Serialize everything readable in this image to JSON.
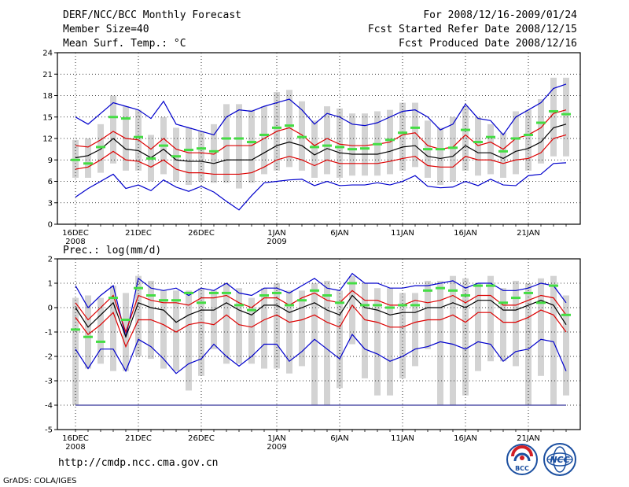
{
  "header": {
    "title": "DERF/NCC/BCC Monthly Forecast",
    "member_size": "Member Size=40",
    "variable": "Mean Surf. Temp.: °C",
    "period": "For 2008/12/16-2009/01/24",
    "fcst_started": "Fcst Started Refer Date 2008/12/15",
    "fcst_produced": "Fcst Produced Date 2008/12/16"
  },
  "panel2_label": "Prec.: log(mm/d)",
  "footer": {
    "url": "http://cmdp.ncc.cma.gov.cn",
    "credit": "GrADS: COLA/IGES"
  },
  "logos": {
    "bcc": "BCC",
    "ncc": "NCC"
  },
  "colors": {
    "max_min": "#0000cc",
    "mean": "#000000",
    "spread": "#dd0000",
    "box": "#d3d3d3",
    "obs": "#44dd44",
    "axis": "#000000"
  },
  "x_tick_labels": [
    {
      "label": "16DEC",
      "sub": "2008",
      "day": 0
    },
    {
      "label": "21DEC",
      "sub": "",
      "day": 5
    },
    {
      "label": "26DEC",
      "sub": "",
      "day": 10
    },
    {
      "label": "1JAN",
      "sub": "2009",
      "day": 16
    },
    {
      "label": "6JAN",
      "sub": "",
      "day": 21
    },
    {
      "label": "11JAN",
      "sub": "",
      "day": 26
    },
    {
      "label": "16JAN",
      "sub": "",
      "day": 31
    },
    {
      "label": "21JAN",
      "sub": "",
      "day": 36
    }
  ],
  "chart_data": [
    {
      "type": "line",
      "title": "Mean Surf. Temp.: °C",
      "ylim": [
        0,
        24
      ],
      "yticks": [
        "0",
        "3",
        "6",
        "9",
        "12",
        "15",
        "18",
        "21",
        "24"
      ],
      "x_days": [
        0,
        1,
        2,
        3,
        4,
        5,
        6,
        7,
        8,
        9,
        10,
        11,
        12,
        13,
        14,
        15,
        16,
        17,
        18,
        19,
        20,
        21,
        22,
        23,
        24,
        25,
        26,
        27,
        28,
        29,
        30,
        31,
        32,
        33,
        34,
        35,
        36,
        37,
        38,
        39
      ],
      "series": [
        {
          "name": "max",
          "values": [
            15,
            14,
            15.5,
            17,
            16.5,
            16,
            14.8,
            17.2,
            14,
            13.5,
            13,
            12.5,
            15,
            16,
            15.8,
            16.5,
            17,
            17.5,
            16,
            14,
            15.5,
            15,
            14,
            13.8,
            14.2,
            15,
            15.8,
            16,
            15,
            13.2,
            14,
            16.8,
            14.8,
            14.5,
            12.5,
            15,
            16,
            17,
            19,
            19.6
          ]
        },
        {
          "name": "p75",
          "values": [
            11,
            10.8,
            11.8,
            13,
            12,
            11.8,
            10.5,
            12,
            10.5,
            10,
            10,
            9.8,
            11,
            11,
            11,
            12,
            13,
            13.5,
            12.5,
            11,
            12,
            11.2,
            11,
            11,
            11.2,
            11.5,
            12.5,
            12.8,
            11,
            10.5,
            10.8,
            12.5,
            11,
            11.5,
            10.5,
            12,
            12.5,
            13.5,
            15.5,
            16
          ]
        },
        {
          "name": "mean",
          "values": [
            9.3,
            9.6,
            10.5,
            12,
            10.5,
            10.3,
            9.3,
            10.5,
            9,
            8.8,
            8.8,
            8.5,
            9,
            9,
            9,
            10,
            11,
            11.5,
            11,
            9.7,
            10.6,
            10,
            9.8,
            9.8,
            9.8,
            10.2,
            10.8,
            11,
            9.5,
            9.2,
            9.5,
            11,
            10,
            10,
            9.2,
            10.2,
            10.6,
            11.5,
            13.5,
            14
          ]
        },
        {
          "name": "p25",
          "values": [
            7.7,
            8,
            9,
            10.2,
            9,
            8.8,
            8,
            9,
            7.7,
            7.2,
            7.2,
            7,
            7,
            7,
            7.2,
            8,
            9,
            9.5,
            9,
            8.2,
            9,
            8.5,
            8.5,
            8.5,
            8.5,
            8.8,
            9.2,
            9.5,
            8.2,
            8,
            8,
            9.5,
            9,
            9,
            8.5,
            9,
            9.2,
            10,
            12,
            12.5
          ]
        },
        {
          "name": "min",
          "values": [
            3.8,
            5,
            6,
            7,
            5,
            5.5,
            4.7,
            6.2,
            5.2,
            4.6,
            5.3,
            4.5,
            3.2,
            2,
            4,
            5.8,
            6,
            6.2,
            6.3,
            5.4,
            6,
            5.4,
            5.5,
            5.5,
            5.8,
            5.5,
            6,
            6.8,
            5.3,
            5.1,
            5.2,
            6,
            5.4,
            6.3,
            5.5,
            5.4,
            6.8,
            7,
            8.5,
            8.6
          ]
        },
        {
          "name": "observed",
          "values": [
            9,
            8.5,
            10.8,
            15,
            14.8,
            12.2,
            9.2,
            11,
            9.5,
            10.4,
            10.6,
            10.2,
            12,
            12,
            11.5,
            12.5,
            13.5,
            13.8,
            12.2,
            10.8,
            11,
            10.8,
            10.5,
            10.6,
            11.2,
            11.8,
            12.8,
            13.5,
            10.5,
            10.5,
            10.7,
            13.2,
            11.5,
            12.2,
            10.2,
            12,
            12.5,
            14.2,
            15.8,
            15.4
          ]
        },
        {
          "name": "box_high",
          "values": [
            11.8,
            12,
            14,
            18,
            16.5,
            16,
            12.5,
            15,
            13.5,
            13.5,
            13,
            14,
            16.8,
            16.8,
            16,
            16.5,
            18.5,
            18.8,
            17.2,
            14.5,
            16.5,
            16.2,
            15.5,
            15.5,
            15.8,
            16,
            17,
            17,
            14.5,
            13.5,
            15,
            16.5,
            15,
            14,
            12.8,
            15.8,
            16,
            17.5,
            20.5,
            20.5
          ]
        },
        {
          "name": "box_low",
          "values": [
            6.5,
            6.5,
            7.2,
            8.5,
            7.5,
            7.5,
            6,
            7,
            6,
            5.5,
            6,
            5.8,
            5.8,
            5,
            5.8,
            7,
            7.5,
            8,
            7.5,
            6.5,
            7,
            6.5,
            6.8,
            6.8,
            6.8,
            7,
            7.5,
            8,
            6.5,
            5.5,
            6,
            7.5,
            6.8,
            7,
            6.5,
            7,
            7.5,
            8.5,
            9.5,
            9.5
          ]
        }
      ]
    },
    {
      "type": "line",
      "title": "Prec.: log(mm/d)",
      "ylim": [
        -5,
        2
      ],
      "yticks": [
        "-5",
        "-4",
        "-3",
        "-2",
        "-1",
        "0",
        "1",
        "2"
      ],
      "x_days": [
        0,
        1,
        2,
        3,
        4,
        5,
        6,
        7,
        8,
        9,
        10,
        11,
        12,
        13,
        14,
        15,
        16,
        17,
        18,
        19,
        20,
        21,
        22,
        23,
        24,
        25,
        26,
        27,
        28,
        29,
        30,
        31,
        32,
        33,
        34,
        35,
        36,
        37,
        38,
        39
      ],
      "series": [
        {
          "name": "max",
          "values": [
            0.9,
            0,
            0.5,
            0.9,
            -1.2,
            1.2,
            0.8,
            0.7,
            0.8,
            0.5,
            0.8,
            0.7,
            1,
            0.6,
            0.5,
            0.8,
            0.8,
            0.6,
            0.9,
            1.2,
            0.8,
            0.7,
            1.4,
            1,
            1,
            0.8,
            0.8,
            0.9,
            0.9,
            1,
            1.1,
            0.8,
            1,
            1,
            0.7,
            0.7,
            0.8,
            1,
            0.9,
            0.2
          ]
        },
        {
          "name": "p75",
          "values": [
            0.2,
            -0.5,
            0,
            0.5,
            -1,
            0.5,
            0.3,
            0.2,
            0.2,
            0.1,
            0.4,
            0.4,
            0.5,
            0.2,
            0,
            0.4,
            0.4,
            0.1,
            0.4,
            0.6,
            0.3,
            0.2,
            0.7,
            0.3,
            0.3,
            0.1,
            0.1,
            0.3,
            0.2,
            0.3,
            0.5,
            0.2,
            0.5,
            0.5,
            0.1,
            0.1,
            0.3,
            0.5,
            0.4,
            -0.3
          ]
        },
        {
          "name": "mean",
          "values": [
            0,
            -0.8,
            -0.3,
            0.2,
            -1.2,
            0.2,
            0,
            -0.1,
            -0.6,
            -0.3,
            -0.1,
            -0.1,
            0.2,
            -0.1,
            -0.3,
            0.1,
            0.1,
            -0.2,
            0,
            0.2,
            -0.1,
            -0.3,
            0.5,
            0,
            -0.1,
            -0.3,
            -0.2,
            -0.2,
            0,
            0,
            0.2,
            0,
            0.3,
            0.3,
            -0.1,
            -0.1,
            0.1,
            0.3,
            0.1,
            -0.7
          ]
        },
        {
          "name": "p25",
          "values": [
            -0.4,
            -1.1,
            -0.7,
            -0.2,
            -1.6,
            -0.5,
            -0.5,
            -0.7,
            -1,
            -0.7,
            -0.6,
            -0.7,
            -0.3,
            -0.7,
            -0.8,
            -0.5,
            -0.3,
            -0.6,
            -0.5,
            -0.3,
            -0.6,
            -0.8,
            0.1,
            -0.5,
            -0.6,
            -0.8,
            -0.8,
            -0.6,
            -0.5,
            -0.5,
            -0.3,
            -0.6,
            -0.2,
            -0.2,
            -0.6,
            -0.6,
            -0.4,
            -0.1,
            -0.3,
            -1
          ]
        },
        {
          "name": "min",
          "values": [
            -1.7,
            -2.5,
            -1.7,
            -1.7,
            -2.6,
            -1.3,
            -1.6,
            -2.1,
            -2.7,
            -2.3,
            -2.1,
            -1.5,
            -2,
            -2.4,
            -2,
            -1.5,
            -1.5,
            -2.2,
            -1.8,
            -1.3,
            -1.7,
            -2.1,
            -1.1,
            -1.7,
            -1.9,
            -2.2,
            -2,
            -1.7,
            -1.6,
            -1.4,
            -1.5,
            -1.7,
            -1.4,
            -1.5,
            -2.2,
            -1.8,
            -1.7,
            -1.3,
            -1.4,
            -2.6
          ]
        },
        {
          "name": "observed",
          "values": [
            -0.9,
            -1.2,
            -1.4,
            0.4,
            -0.5,
            0.8,
            0.5,
            0.3,
            0.3,
            0.6,
            0.2,
            0.6,
            0.6,
            0.1,
            -0.1,
            0.5,
            0.6,
            0.1,
            0.3,
            0.7,
            0.5,
            0.2,
            1,
            0.1,
            0.1,
            0,
            0.1,
            0.1,
            0.7,
            0.8,
            0.7,
            0.5,
            0.9,
            0.9,
            0.2,
            0.4,
            0.6,
            0.2,
            0.9,
            -0.3
          ]
        },
        {
          "name": "box_high",
          "values": [
            0.4,
            0.5,
            0.4,
            0.9,
            0.6,
            1.3,
            1.1,
            0.7,
            0.7,
            0.7,
            0.8,
            0.7,
            1,
            0.8,
            0.4,
            0.8,
            1,
            0.7,
            0.7,
            1,
            1.1,
            0.7,
            1.3,
            1,
            0.8,
            0.8,
            0.6,
            0.6,
            1.1,
            1.1,
            1.3,
            1.2,
            1,
            1.3,
            0.8,
            1.1,
            1,
            1.2,
            1.3,
            0.5
          ]
        },
        {
          "name": "box_low",
          "values": [
            -4,
            -2.5,
            -2.3,
            -2.6,
            -2.6,
            -2,
            -2.1,
            -2.5,
            -2.6,
            -3.4,
            -2.8,
            -1.7,
            -2.3,
            -2.3,
            -2.3,
            -2.5,
            -2.5,
            -2.7,
            -2.4,
            -4,
            -4,
            -3.3,
            -1.5,
            -2.9,
            -3.6,
            -3.6,
            -2.9,
            -2.4,
            -1.7,
            -4,
            -4,
            -3.6,
            -2.6,
            -2.2,
            -2.2,
            -2.4,
            -4,
            -2.8,
            -4,
            -3.6
          ]
        },
        {
          "name": "floor",
          "values": [
            -4,
            -4
          ]
        }
      ]
    }
  ]
}
